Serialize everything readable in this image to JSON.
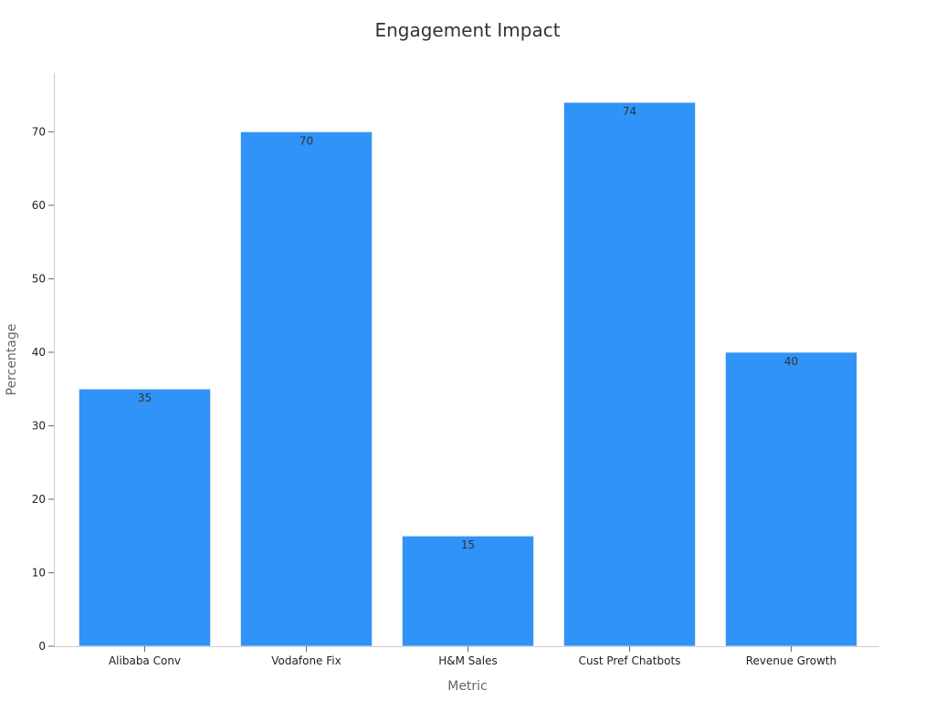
{
  "chart_data": {
    "type": "bar",
    "title": "Engagement Impact",
    "xlabel": "Metric",
    "ylabel": "Percentage",
    "categories": [
      "Alibaba Conv",
      "Vodafone Fix",
      "H&M Sales",
      "Cust Pref Chatbots",
      "Revenue Growth"
    ],
    "values": [
      35,
      70,
      15,
      74,
      40
    ],
    "ylim": [
      0,
      78
    ],
    "yticks": [
      0,
      10,
      20,
      30,
      40,
      50,
      60,
      70
    ],
    "grid": false,
    "bar_color": "#2f93f8",
    "data_labels": true
  }
}
